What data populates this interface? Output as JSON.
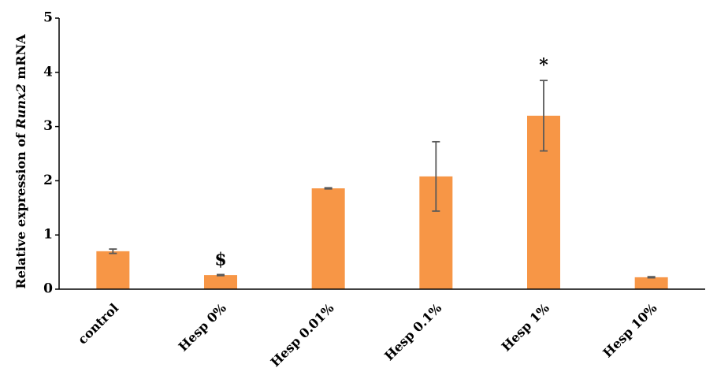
{
  "chart_data": {
    "type": "bar",
    "ylabel": {
      "before": "Relative expression of ",
      "italic": "Runx2",
      "after": " mRNA"
    },
    "categories": [
      "control",
      "Hesp 0%",
      "Hesp 0.01%",
      "Hesp 0.1%",
      "Hesp 1%",
      "Hesp 10%"
    ],
    "values": [
      0.7,
      0.26,
      1.86,
      2.08,
      3.2,
      0.22
    ],
    "errors": [
      0.04,
      0.01,
      0.01,
      0.64,
      0.65,
      0.01
    ],
    "color": "#f79646",
    "error_color": "#595959",
    "annotations": [
      {
        "text": "$",
        "category": "Hesp 0%"
      },
      {
        "text": "*",
        "category": "Hesp 1%"
      }
    ],
    "ylim": [
      0,
      5
    ],
    "yticks": [
      0,
      1,
      2,
      3,
      4,
      5
    ],
    "grid": false
  }
}
